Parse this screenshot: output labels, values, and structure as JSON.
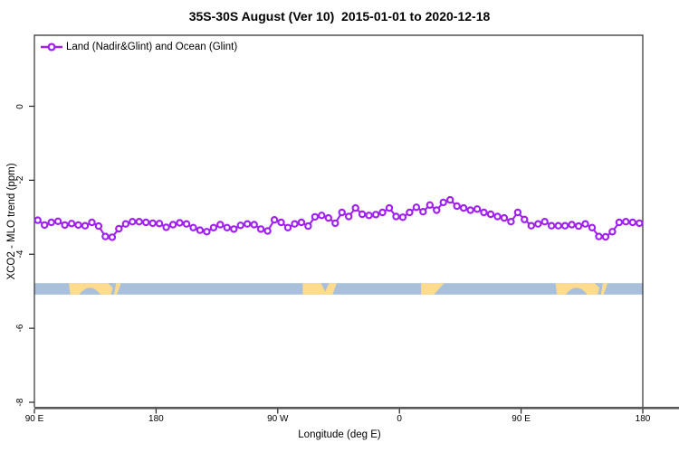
{
  "title": "35S-30S August (Ver 10)  2015-01-01 to 2020-12-18",
  "legend": {
    "label": "Land (Nadir&Glint) and Ocean (Glint)",
    "marker": "open-circle-on-line"
  },
  "axes": {
    "x_label": "Longitude (deg E)",
    "y_label": "XCO2 - MLO trend (ppm)",
    "x_ticks": [
      {
        "label": "90 E",
        "deg": 90
      },
      {
        "label": "180",
        "deg": 180
      },
      {
        "label": "90 W",
        "deg": 270
      },
      {
        "label": "0",
        "deg": 360
      },
      {
        "label": "90 E",
        "deg": 450
      },
      {
        "label": "180",
        "deg": 540
      }
    ],
    "y_ticks": [
      {
        "label": "0",
        "value": 0
      },
      {
        "label": "-2",
        "value": -2
      },
      {
        "label": "-4",
        "value": -4
      },
      {
        "label": "-6",
        "value": -6
      },
      {
        "label": "-8",
        "value": -8
      }
    ]
  },
  "colors": {
    "series": "#A020F0",
    "ocean_band": "#A9C0DC",
    "land_band": "#FFDB8E",
    "axis_line": "#595959",
    "box_border": "#2e2e2e",
    "text": "#000000"
  },
  "chart_data": {
    "type": "line",
    "title": "35S-30S August (Ver 10)  2015-01-01 to 2020-12-18",
    "xlabel": "Longitude (deg E)",
    "ylabel": "XCO2 - MLO trend (ppm)",
    "x_axis_span_deg": [
      90,
      540
    ],
    "ylim": [
      -8.2,
      1.9
    ],
    "grid": false,
    "legend_position": "top-left-inside",
    "x_start_deg": 92.5,
    "x_step_deg": 5,
    "series": [
      {
        "name": "Land (Nadir&Glint) and Ocean (Glint)",
        "color": "#A020F0",
        "marker": "open-circle",
        "values": [
          -3.08,
          -3.21,
          -3.14,
          -3.11,
          -3.21,
          -3.17,
          -3.21,
          -3.23,
          -3.14,
          -3.24,
          -3.52,
          -3.54,
          -3.31,
          -3.18,
          -3.12,
          -3.12,
          -3.14,
          -3.16,
          -3.17,
          -3.27,
          -3.2,
          -3.15,
          -3.18,
          -3.28,
          -3.35,
          -3.39,
          -3.28,
          -3.2,
          -3.28,
          -3.32,
          -3.22,
          -3.18,
          -3.2,
          -3.32,
          -3.37,
          -3.07,
          -3.14,
          -3.28,
          -3.18,
          -3.14,
          -3.24,
          -2.99,
          -2.95,
          -3.02,
          -3.16,
          -2.87,
          -2.98,
          -2.75,
          -2.92,
          -2.95,
          -2.93,
          -2.87,
          -2.75,
          -2.98,
          -3.0,
          -2.87,
          -2.73,
          -2.85,
          -2.67,
          -2.81,
          -2.6,
          -2.53,
          -2.7,
          -2.75,
          -2.81,
          -2.78,
          -2.87,
          -2.92,
          -2.98,
          -3.02,
          -3.12,
          -2.87,
          -3.06,
          -3.23,
          -3.18,
          -3.12,
          -3.23,
          -3.23,
          -3.23,
          -3.2,
          -3.24,
          -3.18,
          -3.28,
          -3.52,
          -3.53,
          -3.39,
          -3.14,
          -3.12,
          -3.14,
          -3.16
        ]
      }
    ],
    "land_ocean_band": {
      "description": "horizontal strip showing ocean (blue) and land (yellow) along the 35S-30S latitude belt",
      "y_top": -4.78,
      "y_bottom": -5.09,
      "ocean_color": "#A9C0DC",
      "land_color": "#FFDB8E",
      "land_patches": [
        {
          "name": "australia",
          "points": [
            [
              115.5,
              0
            ],
            [
              149,
              0
            ],
            [
              146.5,
              1
            ],
            [
              116.5,
              1
            ]
          ]
        },
        {
          "name": "australia-east-coast",
          "points": [
            [
              150.5,
              0
            ],
            [
              154,
              0
            ],
            [
              151,
              1
            ],
            [
              149,
              1
            ]
          ]
        },
        {
          "name": "south-america",
          "points": [
            [
              288.5,
              0
            ],
            [
              313.5,
              0
            ],
            [
              310.5,
              1
            ],
            [
              288.5,
              1
            ]
          ]
        },
        {
          "name": "south-africa",
          "points": [
            [
              376,
              0
            ],
            [
              393,
              0
            ],
            [
              385.5,
              1
            ],
            [
              376,
              1
            ]
          ]
        },
        {
          "name": "australia-repeat",
          "points": [
            [
              475.5,
              0
            ],
            [
              509,
              0
            ],
            [
              506.5,
              1
            ],
            [
              476.5,
              1
            ]
          ]
        },
        {
          "name": "australia-east-coast-repeat",
          "points": [
            [
              510.5,
              0
            ],
            [
              514,
              0
            ],
            [
              511,
              1
            ],
            [
              509,
              1
            ]
          ]
        }
      ],
      "ocean_insets": [
        {
          "name": "great-australian-bight",
          "shape": "hump",
          "deg": [
            123,
            139
          ],
          "depth_t": 0.4
        },
        {
          "name": "australia-ne-cut",
          "shape": "top-cut",
          "deg": [
            144.5,
            149
          ],
          "depth_t": 0.55
        },
        {
          "name": "rio-de-la-plata",
          "shape": "notch",
          "deg": [
            302,
            308
          ],
          "depth_t": 0.75
        },
        {
          "name": "great-australian-bight-repeat",
          "shape": "hump",
          "deg": [
            483,
            499
          ],
          "depth_t": 0.4
        },
        {
          "name": "australia-ne-cut-repeat",
          "shape": "top-cut",
          "deg": [
            504.5,
            509
          ],
          "depth_t": 0.55
        }
      ]
    }
  }
}
